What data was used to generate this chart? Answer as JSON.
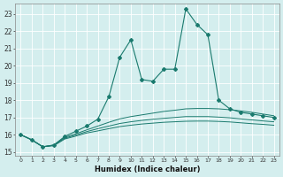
{
  "xlabel": "Humidex (Indice chaleur)",
  "bg_color": "#d4eeee",
  "line_color": "#1a7a6e",
  "grid_color": "#ffffff",
  "xlim": [
    -0.5,
    23.5
  ],
  "ylim": [
    14.8,
    23.6
  ],
  "yticks": [
    15,
    16,
    17,
    18,
    19,
    20,
    21,
    22,
    23
  ],
  "xticks": [
    0,
    1,
    2,
    3,
    4,
    5,
    6,
    7,
    8,
    9,
    10,
    11,
    12,
    13,
    14,
    15,
    16,
    17,
    18,
    19,
    20,
    21,
    22,
    23
  ],
  "series": {
    "main": {
      "x": [
        0,
        1,
        2,
        3,
        4,
        5,
        6,
        7,
        8,
        9,
        10,
        11,
        12,
        13,
        14,
        15,
        16,
        17,
        18,
        19,
        20,
        21,
        22,
        23
      ],
      "y": [
        16.0,
        15.7,
        15.3,
        15.4,
        15.9,
        16.2,
        16.5,
        16.9,
        18.2,
        20.5,
        21.5,
        19.2,
        19.1,
        19.8,
        19.8,
        23.3,
        22.4,
        21.8,
        18.0,
        17.5,
        17.3,
        17.2,
        17.1,
        17.0
      ]
    },
    "smooth1": {
      "x": [
        0,
        1,
        2,
        3,
        4,
        5,
        6,
        7,
        8,
        9,
        10,
        11,
        12,
        13,
        14,
        15,
        16,
        17,
        18,
        19,
        20,
        21,
        22,
        23
      ],
      "y": [
        16.0,
        15.7,
        15.3,
        15.4,
        15.85,
        16.05,
        16.28,
        16.5,
        16.72,
        16.92,
        17.05,
        17.15,
        17.25,
        17.35,
        17.42,
        17.5,
        17.52,
        17.52,
        17.5,
        17.45,
        17.38,
        17.3,
        17.2,
        17.1
      ]
    },
    "smooth2": {
      "x": [
        0,
        1,
        2,
        3,
        4,
        5,
        6,
        7,
        8,
        9,
        10,
        11,
        12,
        13,
        14,
        15,
        16,
        17,
        18,
        19,
        20,
        21,
        22,
        23
      ],
      "y": [
        16.0,
        15.7,
        15.3,
        15.38,
        15.8,
        15.98,
        16.18,
        16.35,
        16.5,
        16.65,
        16.75,
        16.83,
        16.9,
        16.95,
        17.0,
        17.05,
        17.05,
        17.05,
        17.02,
        16.98,
        16.92,
        16.86,
        16.8,
        16.75
      ]
    },
    "smooth3": {
      "x": [
        0,
        1,
        2,
        3,
        4,
        5,
        6,
        7,
        8,
        9,
        10,
        11,
        12,
        13,
        14,
        15,
        16,
        17,
        18,
        19,
        20,
        21,
        22,
        23
      ],
      "y": [
        16.0,
        15.7,
        15.3,
        15.36,
        15.75,
        15.92,
        16.1,
        16.22,
        16.35,
        16.47,
        16.55,
        16.62,
        16.67,
        16.72,
        16.75,
        16.78,
        16.79,
        16.79,
        16.77,
        16.74,
        16.69,
        16.64,
        16.6,
        16.55
      ]
    }
  }
}
